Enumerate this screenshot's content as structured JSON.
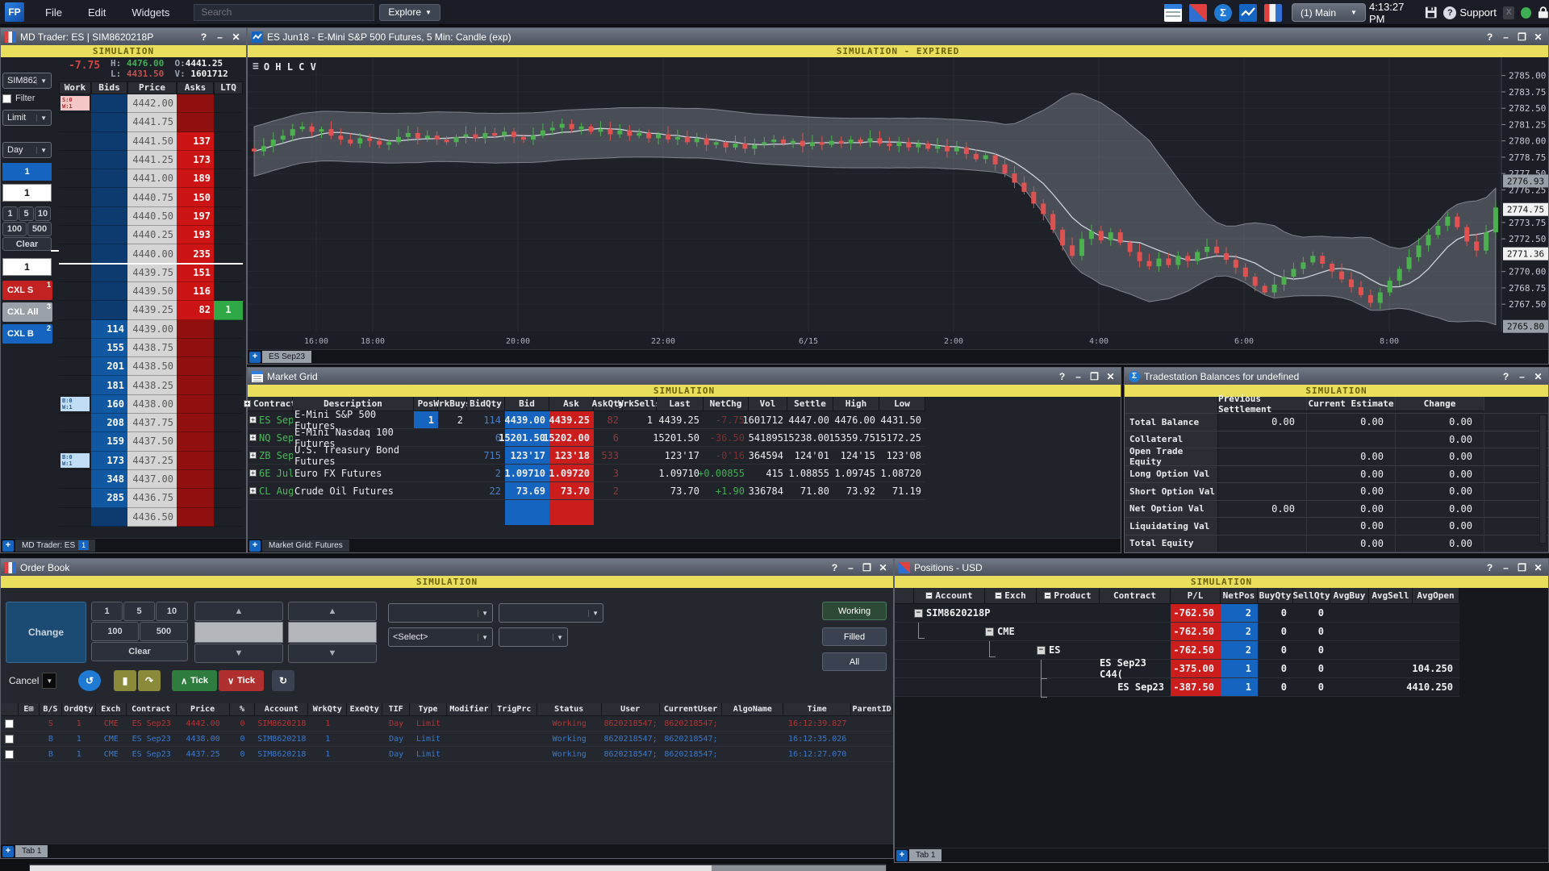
{
  "menubar": {
    "items": [
      {
        "label": "File"
      },
      {
        "label": "Edit"
      },
      {
        "label": "Widgets"
      }
    ],
    "search_placeholder": "Search",
    "explore_label": "Explore",
    "workspace": "(1) Main",
    "clock": "4:13:27 PM",
    "support_label": "Support",
    "logo": "FP",
    "sigma": "Σ"
  },
  "md_trader": {
    "title": "MD Trader: ES | SIM8620218P",
    "banner": "SIMULATION",
    "stats": {
      "change": "-7.75",
      "h_label": "H:",
      "h": "4476.00",
      "o_label": "O:",
      "o": "4441.25",
      "l_label": "L:",
      "l": "4431.50",
      "v_label": "V:",
      "v": "1601712"
    },
    "account_dropdown": "SIM86202",
    "filter_label": "Filter",
    "order_type": "Limit",
    "tif": "Day",
    "qty_preset_active": "1",
    "qty_field_top": "1",
    "qty_buttons": [
      "1",
      "5",
      "10",
      "100",
      "500"
    ],
    "clear_label": "Clear",
    "qty_field_bottom": "1",
    "cxl_sell": {
      "label": "CXL S",
      "sup": "1"
    },
    "cxl_all": {
      "label": "CXL All",
      "sup": "3"
    },
    "cxl_buy": {
      "label": "CXL B",
      "sup": "2"
    },
    "columns": [
      "Work",
      "Bids",
      "Price",
      "Asks",
      "LTQ"
    ],
    "ladder": [
      {
        "p": "4442.00",
        "side": "ask",
        "deep": true,
        "work": {
          "type": "sell",
          "l1": "S:0",
          "l2": "W:1"
        }
      },
      {
        "p": "4441.75",
        "side": "ask",
        "deep": true
      },
      {
        "p": "4441.50",
        "side": "ask",
        "ask": "137"
      },
      {
        "p": "4441.25",
        "side": "ask",
        "ask": "173"
      },
      {
        "p": "4441.00",
        "side": "ask",
        "ask": "189"
      },
      {
        "p": "4440.75",
        "side": "ask",
        "ask": "150"
      },
      {
        "p": "4440.50",
        "side": "ask",
        "ask": "197"
      },
      {
        "p": "4440.25",
        "side": "ask",
        "ask": "193"
      },
      {
        "p": "4440.00",
        "side": "ask",
        "ask": "235",
        "sep": true
      },
      {
        "p": "4439.75",
        "side": "ask",
        "ask": "151"
      },
      {
        "p": "4439.50",
        "side": "ask",
        "ask": "116"
      },
      {
        "p": "4439.25",
        "side": "ask",
        "ask": "82",
        "ltq": "1"
      },
      {
        "p": "4439.00",
        "side": "bid",
        "bid": "114"
      },
      {
        "p": "4438.75",
        "side": "bid",
        "bid": "155"
      },
      {
        "p": "4438.50",
        "side": "bid",
        "bid": "201"
      },
      {
        "p": "4438.25",
        "side": "bid",
        "bid": "181"
      },
      {
        "p": "4438.00",
        "side": "bid",
        "bid": "160",
        "work": {
          "type": "buy",
          "l1": "B:0",
          "l2": "W:1"
        }
      },
      {
        "p": "4437.75",
        "side": "bid",
        "bid": "208"
      },
      {
        "p": "4437.50",
        "side": "bid",
        "bid": "159"
      },
      {
        "p": "4437.25",
        "side": "bid",
        "bid": "173",
        "work": {
          "type": "buy",
          "l1": "B:0",
          "l2": "W:1"
        }
      },
      {
        "p": "4437.00",
        "side": "bid",
        "bid": "348"
      },
      {
        "p": "4436.75",
        "side": "bid",
        "bid": "285"
      },
      {
        "p": "4436.50",
        "side": "bid",
        "deep": true
      }
    ],
    "tab": "MD Trader: ES",
    "tab_badge": "1"
  },
  "chart": {
    "title": "ES Jun18 - E-Mini S&P 500 Futures, 5 Min: Candle (exp)",
    "banner": "SIMULATION - EXPIRED",
    "ohlcv": "O H L C V",
    "tab": "ES Sep23",
    "y_ticks": [
      2785.0,
      2783.75,
      2782.5,
      2781.25,
      2780.0,
      2778.75,
      2777.5,
      2776.25,
      2773.75,
      2772.5,
      2770.0,
      2768.75,
      2767.5
    ],
    "markers": [
      {
        "value": 2776.93,
        "style": "gray"
      },
      {
        "value": 2774.75,
        "style": "white"
      },
      {
        "value": 2771.36,
        "style": "white"
      },
      {
        "value": 2765.8,
        "style": "gray"
      }
    ],
    "x_ticks": [
      {
        "label": "16:00",
        "x": 85
      },
      {
        "label": "18:00",
        "x": 155
      },
      {
        "label": "20:00",
        "x": 335
      },
      {
        "label": "22:00",
        "x": 515
      },
      {
        "label": "6/15",
        "x": 695
      },
      {
        "label": "2:00",
        "x": 875
      },
      {
        "label": "4:00",
        "x": 1055
      },
      {
        "label": "6:00",
        "x": 1235
      },
      {
        "label": "8:00",
        "x": 1415
      }
    ],
    "chart_data": {
      "type": "candlestick-with-band",
      "title": "ES Jun18 - E-Mini S&P 500 Futures, 5 Min: Candle (exp)",
      "ylim": [
        2765.0,
        2786.0
      ],
      "closes": [
        2779.2,
        2779.6,
        2780.1,
        2780.4,
        2780.9,
        2781.1,
        2780.7,
        2780.9,
        2780.4,
        2780.1,
        2779.8,
        2780.2,
        2780.0,
        2779.7,
        2779.9,
        2780.3,
        2780.6,
        2780.2,
        2780.4,
        2780.1,
        2779.9,
        2780.3,
        2780.5,
        2780.2,
        2780.6,
        2780.4,
        2780.7,
        2780.3,
        2780.1,
        2780.4,
        2780.8,
        2781.0,
        2781.3,
        2780.9,
        2781.1,
        2780.7,
        2780.9,
        2780.5,
        2780.8,
        2780.4,
        2780.6,
        2780.2,
        2780.5,
        2780.1,
        2780.3,
        2779.9,
        2780.2,
        2779.7,
        2779.9,
        2779.5,
        2779.8,
        2779.4,
        2779.7,
        2779.9,
        2780.1,
        2779.8,
        2780.0,
        2779.6,
        2779.9,
        2779.7,
        2780.0,
        2779.8,
        2780.1,
        2779.9,
        2780.2,
        2779.8,
        2779.6,
        2779.9,
        2779.5,
        2779.8,
        2779.4,
        2779.6,
        2779.2,
        2779.5,
        2779.0,
        2778.6,
        2778.9,
        2778.2,
        2777.5,
        2776.8,
        2776.1,
        2775.2,
        2774.4,
        2773.2,
        2772.0,
        2771.2,
        2772.5,
        2773.1,
        2772.4,
        2773.0,
        2772.2,
        2771.5,
        2770.8,
        2770.4,
        2771.0,
        2770.5,
        2771.2,
        2770.8,
        2771.5,
        2771.9,
        2771.4,
        2770.9,
        2770.3,
        2769.6,
        2768.9,
        2768.4,
        2769.0,
        2769.6,
        2770.2,
        2770.7,
        2771.2,
        2770.6,
        2770.0,
        2769.4,
        2768.8,
        2768.2,
        2767.6,
        2768.4,
        2769.3,
        2770.2,
        2771.1,
        2772.0,
        2772.8,
        2773.5,
        2774.2,
        2773.4,
        2772.3,
        2771.6,
        2773.0,
        2774.9
      ]
    }
  },
  "market_grid": {
    "title": "Market Grid",
    "banner": "SIMULATION",
    "columns": [
      "Contract",
      "Description",
      "Pos",
      "WrkBuys",
      "BidQty",
      "Bid",
      "Ask",
      "AskQty",
      "WrkSells",
      "Last",
      "NetChg",
      "Vol",
      "Settle",
      "High",
      "Low"
    ],
    "rows": [
      {
        "contract": "ES Sep23",
        "desc": "E-Mini S&P 500 Futures",
        "pos": "1",
        "wrkbuys": "2",
        "bidqty": "114",
        "bid": "4439.00",
        "ask": "4439.25",
        "askqty": "82",
        "wrksells": "1",
        "last": "4439.25",
        "netchg": "-7.75",
        "chg": "neg",
        "vol": "1601712",
        "settle": "4447.00",
        "high": "4476.00",
        "low": "4431.50"
      },
      {
        "contract": "NQ Sep23",
        "desc": "E-Mini Nasdaq 100 Futures",
        "pos": "",
        "wrkbuys": "",
        "bidqty": "6",
        "bid": "15201.50",
        "ask": "15202.00",
        "askqty": "6",
        "wrksells": "",
        "last": "15201.50",
        "netchg": "-36.50",
        "chg": "neg",
        "vol": "541895",
        "settle": "15238.00",
        "high": "15359.75",
        "low": "15172.25"
      },
      {
        "contract": "ZB Sep23",
        "desc": "U.S. Treasury Bond Futures",
        "pos": "",
        "wrkbuys": "",
        "bidqty": "715",
        "bid": "123'17",
        "ask": "123'18",
        "askqty": "533",
        "wrksells": "",
        "last": "123'17",
        "netchg": "-0'16",
        "chg": "neg",
        "vol": "364594",
        "settle": "124'01",
        "high": "124'15",
        "low": "123'08"
      },
      {
        "contract": "6E Jul23",
        "desc": "Euro FX Futures",
        "pos": "",
        "wrkbuys": "",
        "bidqty": "2",
        "bid": "1.09710",
        "ask": "1.09720",
        "askqty": "3",
        "wrksells": "",
        "last": "1.09710",
        "netchg": "+0.00855",
        "chg": "pos",
        "vol": "415",
        "settle": "1.08855",
        "high": "1.09745",
        "low": "1.08720"
      },
      {
        "contract": "CL Aug23",
        "desc": "Crude Oil Futures",
        "pos": "",
        "wrkbuys": "",
        "bidqty": "22",
        "bid": "73.69",
        "ask": "73.70",
        "askqty": "2",
        "wrksells": "",
        "last": "73.70",
        "netchg": "+1.90",
        "chg": "pos",
        "vol": "336784",
        "settle": "71.80",
        "high": "73.92",
        "low": "71.19"
      }
    ],
    "tab": "Market Grid: Futures"
  },
  "balances": {
    "title": "Tradestation Balances for undefined",
    "banner": "SIMULATION",
    "columns": [
      "Previous Settlement",
      "Current Estimate",
      "Change"
    ],
    "rows": [
      {
        "label": "Total Balance",
        "prev": "0.00",
        "cur": "0.00",
        "chg": "0.00"
      },
      {
        "label": "Collateral",
        "prev": "",
        "cur": "",
        "chg": "0.00"
      },
      {
        "label": "Open Trade Equity",
        "prev": "",
        "cur": "0.00",
        "chg": "0.00"
      },
      {
        "label": "Long Option Val",
        "prev": "",
        "cur": "0.00",
        "chg": "0.00"
      },
      {
        "label": "Short Option Val",
        "prev": "",
        "cur": "0.00",
        "chg": "0.00"
      },
      {
        "label": "Net Option Val",
        "prev": "0.00",
        "cur": "0.00",
        "chg": "0.00"
      },
      {
        "label": "Liquidating Val",
        "prev": "",
        "cur": "0.00",
        "chg": "0.00"
      },
      {
        "label": "Total Equity",
        "prev": "",
        "cur": "0.00",
        "chg": "0.00"
      }
    ]
  },
  "order_book": {
    "title": "Order Book",
    "banner": "SIMULATION",
    "change_label": "Change",
    "qty_buttons": [
      "1",
      "5",
      "10",
      "100",
      "500"
    ],
    "clear_label": "Clear",
    "select_placeholder": "<Select>",
    "filters": [
      "Working",
      "Filled",
      "All"
    ],
    "cancel_label": "Cancel",
    "tick_up": "Tick",
    "tick_down": "Tick",
    "columns": [
      "",
      "E⊞",
      "B/S",
      "OrdQty",
      "Exch",
      "Contract",
      "Price",
      "%",
      "Account",
      "WrkQty",
      "ExeQty",
      "TIF",
      "Type",
      "Modifier",
      "TrigPrc",
      "Status",
      "User",
      "CurrentUser",
      "AlgoName",
      "Time",
      "ParentID"
    ],
    "rows": [
      {
        "tone": "sell",
        "bs": "S",
        "ordqty": "1",
        "exch": "CME",
        "contract": "ES Sep23",
        "price": "4442.00",
        "pct": "0",
        "account": "SIM8620218",
        "wrkqty": "1",
        "tif": "Day",
        "type": "Limit",
        "status": "Working",
        "user": "8620218547;",
        "curuser": "8620218547;",
        "time": "16:12:39.827"
      },
      {
        "tone": "buy",
        "bs": "B",
        "ordqty": "1",
        "exch": "CME",
        "contract": "ES Sep23",
        "price": "4438.00",
        "pct": "0",
        "account": "SIM8620218",
        "wrkqty": "1",
        "tif": "Day",
        "type": "Limit",
        "status": "Working",
        "user": "8620218547;",
        "curuser": "8620218547;",
        "time": "16:12:35.026"
      },
      {
        "tone": "buy",
        "bs": "B",
        "ordqty": "1",
        "exch": "CME",
        "contract": "ES Sep23",
        "price": "4437.25",
        "pct": "0",
        "account": "SIM8620218",
        "wrkqty": "1",
        "tif": "Day",
        "type": "Limit",
        "status": "Working",
        "user": "8620218547;",
        "curuser": "8620218547;",
        "time": "16:12:27.070"
      }
    ],
    "tab": "Tab 1"
  },
  "positions": {
    "title": "Positions - USD",
    "banner": "SIMULATION",
    "columns": [
      "",
      "Account",
      "Exch",
      "Product",
      "Contract",
      "P/L",
      "NetPos",
      "BuyQty",
      "SellQty",
      "AvgBuy",
      "AvgSell",
      "AvgOpen"
    ],
    "rows": [
      {
        "level": 0,
        "expand": true,
        "account": "SIM8620218P",
        "pl": "-762.50",
        "net": "2",
        "buy": "0",
        "sell": "0",
        "avgopen": ""
      },
      {
        "level": 1,
        "expand": true,
        "exch": "CME",
        "pl": "-762.50",
        "net": "2",
        "buy": "0",
        "sell": "0",
        "avgopen": ""
      },
      {
        "level": 2,
        "expand": true,
        "product": "ES",
        "pl": "-762.50",
        "net": "2",
        "buy": "0",
        "sell": "0",
        "avgopen": ""
      },
      {
        "level": 3,
        "contract": "ES Sep23 C44(",
        "pl": "-375.00",
        "net": "1",
        "buy": "0",
        "sell": "0",
        "avgopen": "104.250"
      },
      {
        "level": 3,
        "contract": "ES Sep23",
        "pl": "-387.50",
        "net": "1",
        "buy": "0",
        "sell": "0",
        "avgopen": "4410.250"
      }
    ],
    "tab": "Tab 1"
  },
  "colors": {
    "bid_blue": "#1158a3",
    "ask_red": "#cc1414",
    "pos_blue": "#1565c0",
    "neg_red": "#cc1d1d",
    "sim_yellow": "#e9df5d",
    "green": "#3fae52",
    "candle_up": "#4caf50",
    "candle_down": "#e05252"
  }
}
